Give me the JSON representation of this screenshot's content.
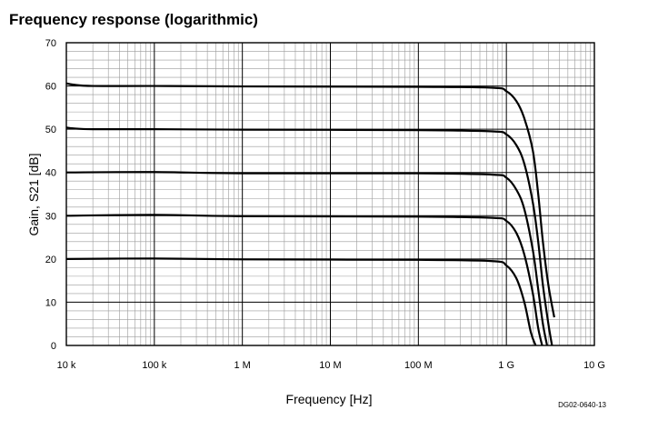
{
  "chart_data": {
    "type": "line",
    "title": "Frequency response (logarithmic)",
    "xlabel": "Frequency [Hz]",
    "ylabel": "Gain, S21 [dB]",
    "figure_code": "DG02-0640-13",
    "x_scale": "log",
    "xlim": [
      10000,
      10000000000
    ],
    "ylim": [
      0,
      70
    ],
    "x_ticks": [
      {
        "value": 10000,
        "label": "10 k"
      },
      {
        "value": 100000,
        "label": "100 k"
      },
      {
        "value": 1000000,
        "label": "1 M"
      },
      {
        "value": 10000000,
        "label": "10 M"
      },
      {
        "value": 100000000,
        "label": "100 M"
      },
      {
        "value": 1000000000,
        "label": "1 G"
      },
      {
        "value": 10000000000,
        "label": "10 G"
      }
    ],
    "y_ticks": [
      0,
      10,
      20,
      30,
      40,
      50,
      60,
      70
    ],
    "grid": true,
    "series": [
      {
        "name": "60 dB",
        "points": [
          [
            10000,
            60.6
          ],
          [
            12000,
            60.3
          ],
          [
            20000,
            60.0
          ],
          [
            100000,
            60.0
          ],
          [
            1000000,
            59.9
          ],
          [
            100000000,
            59.8
          ],
          [
            700000000,
            59.6
          ],
          [
            1000000000,
            58.8
          ],
          [
            1300000000,
            56.5
          ],
          [
            1600000000,
            52.5
          ],
          [
            2000000000,
            45
          ],
          [
            2300000000,
            35
          ],
          [
            2600000000,
            24
          ],
          [
            3000000000,
            14
          ],
          [
            3500000000,
            6.5
          ]
        ]
      },
      {
        "name": "50 dB",
        "points": [
          [
            10000,
            50.4
          ],
          [
            12000,
            50.2
          ],
          [
            20000,
            50.0
          ],
          [
            100000,
            50.0
          ],
          [
            1000000,
            49.9
          ],
          [
            100000000,
            49.8
          ],
          [
            700000000,
            49.5
          ],
          [
            1000000000,
            48.8
          ],
          [
            1300000000,
            46.3
          ],
          [
            1600000000,
            42
          ],
          [
            2000000000,
            33
          ],
          [
            2300000000,
            24
          ],
          [
            2600000000,
            14
          ],
          [
            3000000000,
            5
          ],
          [
            3300000000,
            0
          ]
        ]
      },
      {
        "name": "40 dB",
        "points": [
          [
            10000,
            40.0
          ],
          [
            100000,
            40.1
          ],
          [
            1000000,
            39.8
          ],
          [
            100000000,
            39.8
          ],
          [
            700000000,
            39.5
          ],
          [
            1000000000,
            38.8
          ],
          [
            1300000000,
            36
          ],
          [
            1600000000,
            31.5
          ],
          [
            2000000000,
            22
          ],
          [
            2300000000,
            13
          ],
          [
            2600000000,
            5
          ],
          [
            2900000000,
            0
          ]
        ]
      },
      {
        "name": "30 dB",
        "points": [
          [
            10000,
            30.0
          ],
          [
            100000,
            30.2
          ],
          [
            1000000,
            29.9
          ],
          [
            100000000,
            29.8
          ],
          [
            700000000,
            29.5
          ],
          [
            1000000000,
            28.8
          ],
          [
            1300000000,
            26
          ],
          [
            1600000000,
            21
          ],
          [
            2000000000,
            12
          ],
          [
            2300000000,
            4
          ],
          [
            2550000000,
            0
          ]
        ]
      },
      {
        "name": "20 dB",
        "points": [
          [
            10000,
            20.0
          ],
          [
            100000,
            20.1
          ],
          [
            1000000,
            19.9
          ],
          [
            100000000,
            19.8
          ],
          [
            700000000,
            19.5
          ],
          [
            1000000000,
            18.5
          ],
          [
            1300000000,
            15.5
          ],
          [
            1600000000,
            10
          ],
          [
            1900000000,
            3
          ],
          [
            2150000000,
            0
          ]
        ]
      }
    ]
  }
}
